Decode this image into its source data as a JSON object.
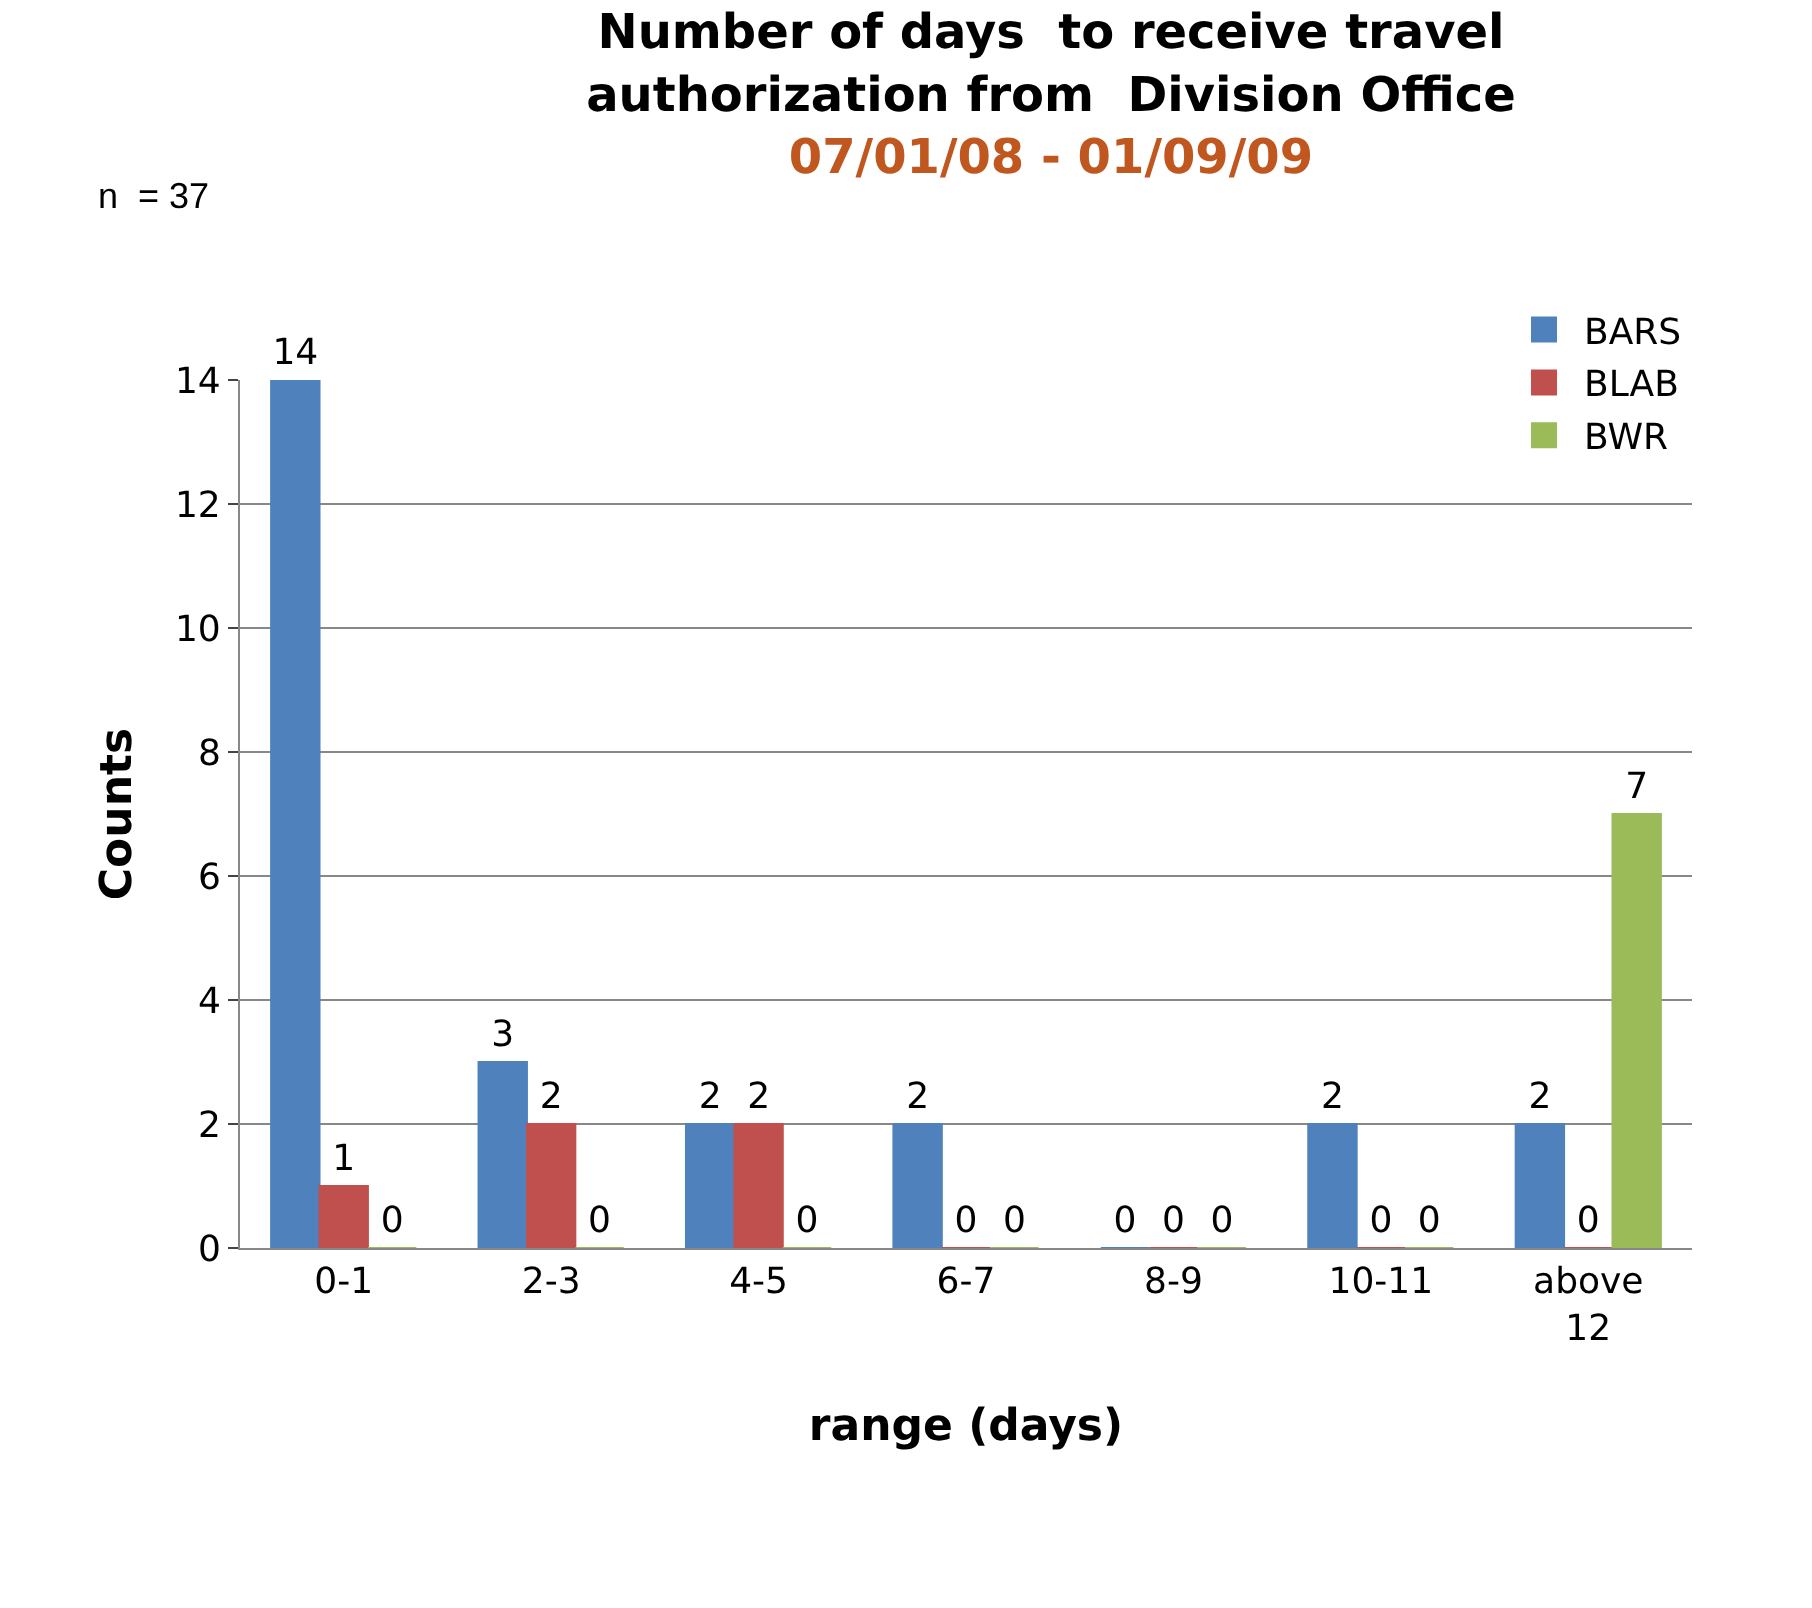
{
  "chart_data": {
    "type": "bar",
    "title": "Number of days  to receive travel authorization from  Division Office",
    "subtitle": "07/01/08 - 01/09/09",
    "xlabel": "range (days)",
    "ylabel": "Counts",
    "annotations": [
      "n  = 37"
    ],
    "categories": [
      "0-1",
      "2-3",
      "4-5",
      "6-7",
      "8-9",
      "10-11",
      "above 12"
    ],
    "series": [
      {
        "name": "BARS",
        "color": "#4f81bd",
        "values": [
          14,
          3,
          2,
          2,
          0,
          2,
          2
        ]
      },
      {
        "name": "BLAB",
        "color": "#c0504d",
        "values": [
          1,
          2,
          2,
          0,
          0,
          0,
          0
        ]
      },
      {
        "name": "BWR",
        "color": "#9bbb59",
        "values": [
          0,
          0,
          0,
          0,
          0,
          0,
          7
        ]
      }
    ],
    "ylim": [
      0,
      14
    ],
    "yticks": [
      0,
      2,
      4,
      6,
      8,
      10,
      12,
      14
    ],
    "grid": "y",
    "legend": "top right",
    "data_labels": true
  }
}
